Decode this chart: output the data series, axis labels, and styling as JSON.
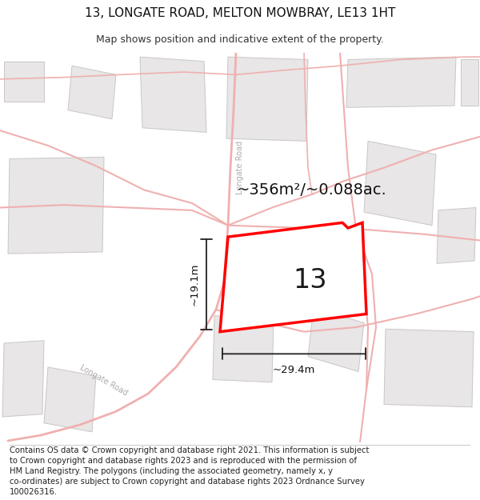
{
  "title": "13, LONGATE ROAD, MELTON MOWBRAY, LE13 1HT",
  "subtitle": "Map shows position and indicative extent of the property.",
  "footer": "Contains OS data © Crown copyright and database right 2021. This information is subject\nto Crown copyright and database rights 2023 and is reproduced with the permission of\nHM Land Registry. The polygons (including the associated geometry, namely x, y\nco-ordinates) are subject to Crown copyright and database rights 2023 Ordnance Survey\n100026316.",
  "area_text": "~356m²/~0.088ac.",
  "label": "13",
  "dim_width": "~29.4m",
  "dim_height": "~19.1m",
  "map_bg": "#f7f5f5",
  "plot_edge_color": "#ff0000",
  "road_color": "#f0b0b0",
  "building_face": "#e8e6e6",
  "building_edge": "#c8c6c6",
  "title_fontsize": 11,
  "subtitle_fontsize": 9,
  "footer_fontsize": 7.2,
  "road_label_color": "#b0aaaa",
  "road_label_size": 7
}
